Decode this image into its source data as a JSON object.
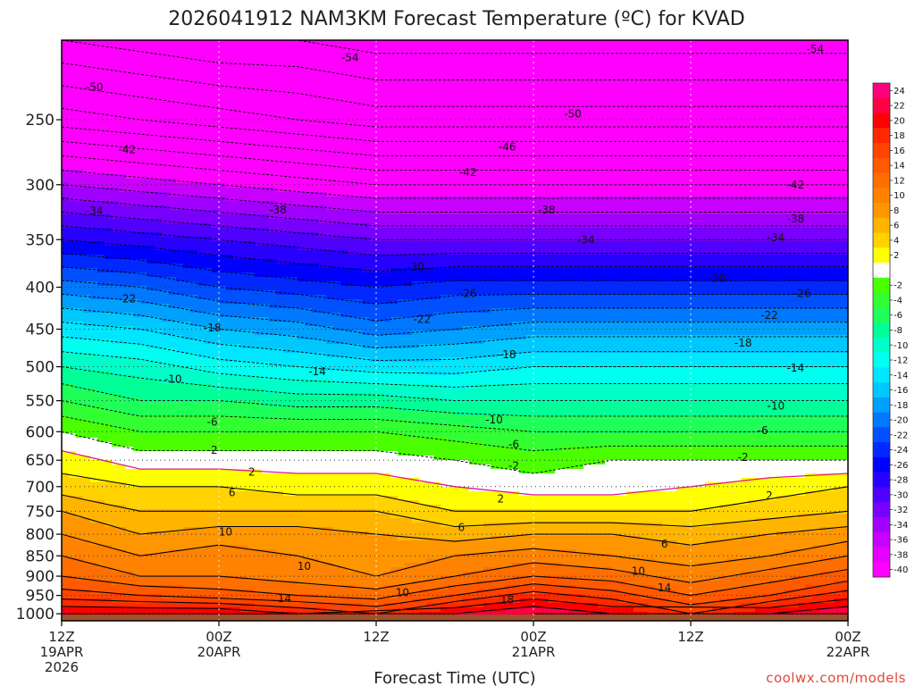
{
  "chart_data": {
    "type": "heatmap",
    "title": "2026041912 NAM3KM Forecast Temperature (ºC) for KVAD",
    "xlabel": "Forecast Time (UTC)",
    "ylabel": "",
    "y_scale": "log-pressure",
    "ylim": [
      1020,
      200
    ],
    "xlim_hours": [
      0,
      60
    ],
    "y_ticks": [
      1000,
      950,
      900,
      850,
      800,
      750,
      700,
      650,
      600,
      550,
      500,
      450,
      400,
      350,
      300,
      250
    ],
    "x_ticks": [
      {
        "hour": 0,
        "l1": "12Z",
        "l2": "19APR",
        "l3": "2026"
      },
      {
        "hour": 12,
        "l1": "00Z",
        "l2": "20APR",
        "l3": ""
      },
      {
        "hour": 24,
        "l1": "12Z",
        "l2": "",
        "l3": ""
      },
      {
        "hour": 36,
        "l1": "00Z",
        "l2": "21APR",
        "l3": ""
      },
      {
        "hour": 48,
        "l1": "12Z",
        "l2": "",
        "l3": ""
      },
      {
        "hour": 60,
        "l1": "00Z",
        "l2": "22APR",
        "l3": ""
      }
    ],
    "x_grid_hours": [
      0,
      12,
      24,
      36,
      48,
      60
    ],
    "grid": true,
    "levels": [
      1000,
      950,
      900,
      850,
      800,
      750,
      700,
      650,
      600,
      550,
      500,
      450,
      400,
      350,
      300,
      250,
      200
    ],
    "hours": [
      0,
      6,
      12,
      18,
      24,
      30,
      36,
      42,
      48,
      54,
      60
    ],
    "temperature": [
      [
        20,
        20,
        20,
        18,
        16,
        20,
        22,
        20,
        16,
        20,
        22
      ],
      [
        15,
        14,
        13,
        12,
        11,
        14,
        17,
        15,
        12,
        14,
        17
      ],
      [
        12,
        10,
        10,
        9,
        8,
        10,
        12,
        11,
        9,
        11,
        13
      ],
      [
        10,
        8,
        9,
        8,
        7,
        8,
        9,
        8,
        7,
        8,
        10
      ],
      [
        8,
        6,
        7,
        7,
        6,
        5,
        6,
        6,
        5,
        6,
        7
      ],
      [
        6,
        4,
        4,
        4,
        4,
        2,
        2,
        2,
        2,
        3,
        4
      ],
      [
        3,
        2,
        2,
        1,
        1,
        0,
        -1,
        -1,
        0,
        1,
        2
      ],
      [
        1,
        -1,
        -1,
        -1,
        -1,
        -2,
        -3,
        -2,
        -2,
        -2,
        -2
      ],
      [
        -2,
        -4,
        -4,
        -4,
        -4,
        -5,
        -6,
        -6,
        -6,
        -6,
        -6
      ],
      [
        -6,
        -8,
        -8,
        -9,
        -9,
        -10,
        -10,
        -10,
        -10,
        -10,
        -10
      ],
      [
        -10,
        -11,
        -13,
        -14,
        -15,
        -15,
        -14,
        -14,
        -14,
        -14,
        -14
      ],
      [
        -15,
        -16,
        -18,
        -19,
        -21,
        -20,
        -19,
        -19,
        -19,
        -19,
        -19
      ],
      [
        -21,
        -22,
        -24,
        -25,
        -26,
        -25,
        -25,
        -25,
        -25,
        -25,
        -25
      ],
      [
        -28,
        -29,
        -30,
        -31,
        -32,
        -32,
        -32,
        -32,
        -32,
        -32,
        -32
      ],
      [
        -36,
        -37,
        -38,
        -39,
        -40,
        -40,
        -40,
        -40,
        -40,
        -40,
        -40
      ],
      [
        -45,
        -46,
        -47,
        -48,
        -49,
        -49,
        -49,
        -49,
        -49,
        -49,
        -49
      ],
      [
        -52,
        -53,
        -54,
        -54,
        -55,
        -55,
        -55,
        -55,
        -55,
        -55,
        -55
      ]
    ],
    "surface_pressure": 1003,
    "colorbar": [
      {
        "label": "24",
        "color": "#ff007f"
      },
      {
        "label": "22",
        "color": "#ff0040"
      },
      {
        "label": "20",
        "color": "#ff0000"
      },
      {
        "label": "18",
        "color": "#ff2800"
      },
      {
        "label": "16",
        "color": "#ff4400"
      },
      {
        "label": "14",
        "color": "#ff5a00"
      },
      {
        "label": "12",
        "color": "#ff6e00"
      },
      {
        "label": "10",
        "color": "#ff8200"
      },
      {
        "label": "8",
        "color": "#ff9600"
      },
      {
        "label": "6",
        "color": "#ffb400"
      },
      {
        "label": "4",
        "color": "#ffd200"
      },
      {
        "label": "2",
        "color": "#ffff00"
      },
      {
        "label": "",
        "color": "#ffffff"
      },
      {
        "label": "-2",
        "color": "#4bff00"
      },
      {
        "label": "-4",
        "color": "#32ff32"
      },
      {
        "label": "-6",
        "color": "#1eff5a"
      },
      {
        "label": "-8",
        "color": "#00ff96"
      },
      {
        "label": "-10",
        "color": "#00ffc8"
      },
      {
        "label": "-12",
        "color": "#00fff0"
      },
      {
        "label": "-14",
        "color": "#00e6ff"
      },
      {
        "label": "-16",
        "color": "#00c8ff"
      },
      {
        "label": "-18",
        "color": "#00a0ff"
      },
      {
        "label": "-20",
        "color": "#0078ff"
      },
      {
        "label": "-22",
        "color": "#0050ff"
      },
      {
        "label": "-24",
        "color": "#0028ff"
      },
      {
        "label": "-26",
        "color": "#0000ff"
      },
      {
        "label": "-28",
        "color": "#2800ff"
      },
      {
        "label": "-30",
        "color": "#5000ff"
      },
      {
        "label": "-32",
        "color": "#7800ff"
      },
      {
        "label": "-34",
        "color": "#a000ff"
      },
      {
        "label": "-36",
        "color": "#c800ff"
      },
      {
        "label": "-38",
        "color": "#e600ff"
      },
      {
        "label": "-40",
        "color": "#ff00ff"
      }
    ],
    "contour_labels": [
      {
        "value": "-54",
        "hour": 22,
        "p": 210
      },
      {
        "value": "-54",
        "hour": 57.5,
        "p": 205
      },
      {
        "value": "-50",
        "hour": 2.5,
        "p": 228
      },
      {
        "value": "-50",
        "hour": 39,
        "p": 246
      },
      {
        "value": "-46",
        "hour": 34,
        "p": 270
      },
      {
        "value": "-42",
        "hour": 5,
        "p": 272
      },
      {
        "value": "-42",
        "hour": 31,
        "p": 290
      },
      {
        "value": "-42",
        "hour": 56,
        "p": 300
      },
      {
        "value": "-38",
        "hour": 16.5,
        "p": 322
      },
      {
        "value": "-38",
        "hour": 37,
        "p": 322
      },
      {
        "value": "-38",
        "hour": 56,
        "p": 330
      },
      {
        "value": "-34",
        "hour": 2.5,
        "p": 323
      },
      {
        "value": "-34",
        "hour": 40,
        "p": 350
      },
      {
        "value": "-34",
        "hour": 54.5,
        "p": 348
      },
      {
        "value": "-30",
        "hour": 27,
        "p": 378
      },
      {
        "value": "-30",
        "hour": 50,
        "p": 390
      },
      {
        "value": "-26",
        "hour": 31,
        "p": 407
      },
      {
        "value": "-26",
        "hour": 56.5,
        "p": 407
      },
      {
        "value": "-22",
        "hour": 5,
        "p": 413
      },
      {
        "value": "-22",
        "hour": 27.5,
        "p": 438
      },
      {
        "value": "-22",
        "hour": 54,
        "p": 433
      },
      {
        "value": "-18",
        "hour": 11.5,
        "p": 448
      },
      {
        "value": "-18",
        "hour": 34,
        "p": 483
      },
      {
        "value": "-18",
        "hour": 52,
        "p": 468
      },
      {
        "value": "-14",
        "hour": 19.5,
        "p": 507
      },
      {
        "value": "-14",
        "hour": 56,
        "p": 502
      },
      {
        "value": "-10",
        "hour": 8.5,
        "p": 518
      },
      {
        "value": "-10",
        "hour": 33,
        "p": 580
      },
      {
        "value": "-10",
        "hour": 54.5,
        "p": 558
      },
      {
        "value": "-6",
        "hour": 11.5,
        "p": 584
      },
      {
        "value": "-6",
        "hour": 53.5,
        "p": 598
      },
      {
        "value": "-6",
        "hour": 34.5,
        "p": 622
      },
      {
        "value": "-2",
        "hour": 11.5,
        "p": 632
      },
      {
        "value": "-2",
        "hour": 34.5,
        "p": 660
      },
      {
        "value": "-2",
        "hour": 52,
        "p": 645
      },
      {
        "value": "2",
        "hour": 14.5,
        "p": 672
      },
      {
        "value": "2",
        "hour": 33.5,
        "p": 724
      },
      {
        "value": "2",
        "hour": 54,
        "p": 718
      },
      {
        "value": "6",
        "hour": 13,
        "p": 712
      },
      {
        "value": "6",
        "hour": 30.5,
        "p": 785
      },
      {
        "value": "6",
        "hour": 46,
        "p": 822
      },
      {
        "value": "10",
        "hour": 12.5,
        "p": 795
      },
      {
        "value": "10",
        "hour": 18.5,
        "p": 875
      },
      {
        "value": "10",
        "hour": 26,
        "p": 942
      },
      {
        "value": "10",
        "hour": 44,
        "p": 887
      },
      {
        "value": "14",
        "hour": 17,
        "p": 958
      },
      {
        "value": "14",
        "hour": 46,
        "p": 930
      },
      {
        "value": "18",
        "hour": 34,
        "p": 962
      }
    ]
  },
  "credit": "coolwx.com/models"
}
